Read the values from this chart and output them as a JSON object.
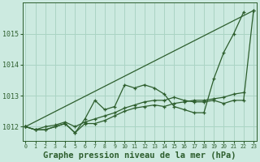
{
  "background_color": "#cceae0",
  "grid_color": "#aad4c4",
  "line_color": "#2d5e2d",
  "xlabel": "Graphe pression niveau de la mer (hPa)",
  "xlabel_fontsize": 7.5,
  "ylabel_ticks": [
    1012,
    1013,
    1014,
    1015
  ],
  "xlim": [
    -0.3,
    23.3
  ],
  "ylim": [
    1011.55,
    1016.0
  ],
  "figsize": [
    3.2,
    2.0
  ],
  "dpi": 100,
  "series": [
    {
      "x": [
        0,
        1,
        2,
        3,
        4,
        5,
        6,
        7,
        8,
        9,
        10,
        11,
        12,
        13,
        14,
        15,
        16,
        17,
        18,
        19,
        20,
        21,
        22
      ],
      "y": [
        1012.0,
        1011.9,
        1011.9,
        1012.0,
        1012.1,
        1011.8,
        1012.25,
        1012.85,
        1012.55,
        1012.65,
        1013.35,
        1013.25,
        1013.35,
        1013.25,
        1013.05,
        1012.65,
        1012.55,
        1012.45,
        1012.45,
        1013.55,
        1014.4,
        1015.0,
        1015.7
      ]
    },
    {
      "x": [
        0,
        1,
        2,
        3,
        4,
        5,
        6,
        7,
        8,
        9,
        10,
        11,
        12,
        13,
        14,
        15,
        16,
        17,
        18,
        19,
        20,
        21,
        22
      ],
      "y": [
        1012.0,
        1011.9,
        1011.9,
        1012.0,
        1012.1,
        1011.8,
        1012.1,
        1012.1,
        1012.2,
        1012.35,
        1012.5,
        1012.6,
        1012.65,
        1012.7,
        1012.65,
        1012.75,
        1012.8,
        1012.85,
        1012.85,
        1012.9,
        1012.95,
        1013.05,
        1013.1
      ]
    },
    {
      "x": [
        0,
        23
      ],
      "y": [
        1012.0,
        1015.75
      ]
    },
    {
      "x": [
        0,
        1,
        2,
        3,
        4,
        5,
        6,
        7,
        8,
        9,
        10,
        11,
        12,
        13,
        14,
        15,
        16,
        17,
        18,
        19,
        20,
        21,
        22,
        23
      ],
      "y": [
        1012.0,
        1011.9,
        1012.0,
        1012.05,
        1012.15,
        1012.0,
        1012.15,
        1012.25,
        1012.35,
        1012.45,
        1012.6,
        1012.7,
        1012.8,
        1012.85,
        1012.85,
        1012.95,
        1012.85,
        1012.8,
        1012.8,
        1012.85,
        1012.75,
        1012.85,
        1012.85,
        1015.75
      ]
    }
  ]
}
